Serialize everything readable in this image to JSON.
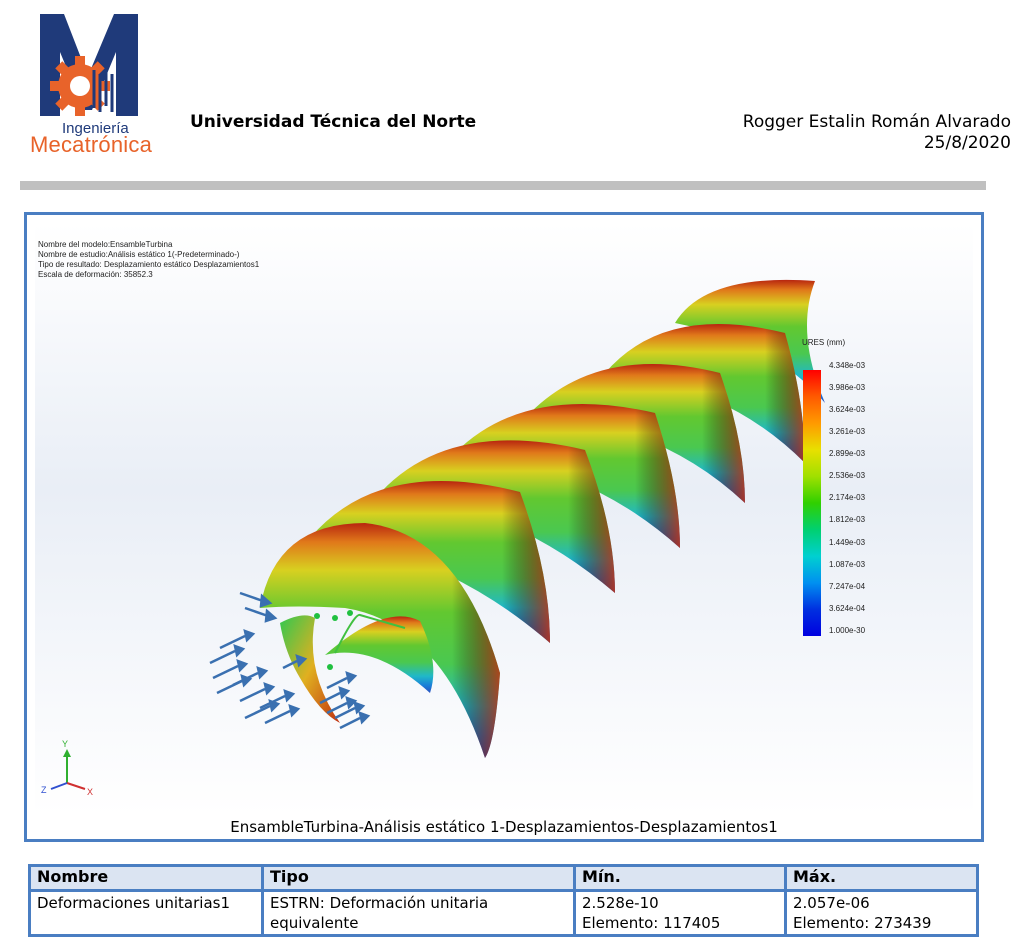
{
  "logo": {
    "line1": "Ingeniería",
    "line2": "Mecatrónica",
    "colors": {
      "blue": "#1f3a7a",
      "orange": "#e8632a"
    }
  },
  "header": {
    "university": "Universidad Técnica del Norte",
    "author": "Rogger Estalin Román Alvarado",
    "date": "25/8/2020"
  },
  "figure": {
    "info": [
      "Nombre del modelo:EnsambleTurbina",
      "Nombre de estudio:Análisis estático 1(-Predeterminado-)",
      "Tipo de resultado: Desplazamiento estático Desplazamientos1",
      "Escala de deformación: 35852.3"
    ],
    "legend": {
      "title": "URES (mm)",
      "ticks": [
        "4.348e-03",
        "3.986e-03",
        "3.624e-03",
        "3.261e-03",
        "2.899e-03",
        "2.536e-03",
        "2.174e-03",
        "1.812e-03",
        "1.449e-03",
        "1.087e-03",
        "7.247e-04",
        "3.624e-04",
        "1.000e-30"
      ]
    },
    "axes": {
      "y": "Y",
      "z": "Z",
      "x": "X"
    },
    "caption": "EnsambleTurbina-Análisis estático 1-Desplazamientos-Desplazamientos1"
  },
  "table": {
    "headers": [
      "Nombre",
      "Tipo",
      "Mín.",
      "Máx."
    ],
    "row": {
      "nombre": "Deformaciones unitarias1",
      "tipo": "ESTRN: Deformación unitaria equivalente",
      "min_value": "2.528e-10",
      "min_element": "Elemento: 117405",
      "max_value": "2.057e-06",
      "max_element": "Elemento: 273439"
    }
  }
}
